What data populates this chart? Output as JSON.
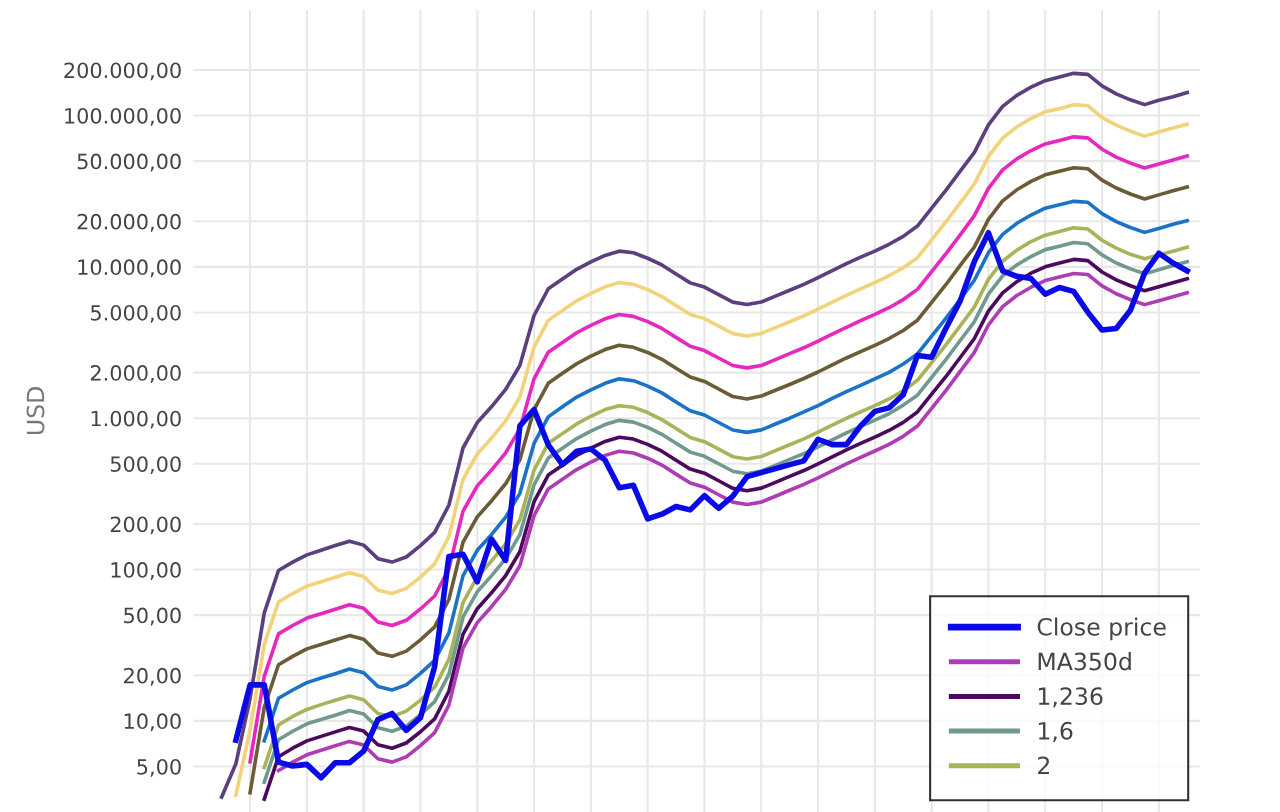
{
  "chart_data": {
    "type": "line",
    "ylabel": "USD",
    "log": "y",
    "ylim": [
      2.5,
      500000
    ],
    "yticks": [
      {
        "value": 5,
        "label": "5,00"
      },
      {
        "value": 10,
        "label": "10,00"
      },
      {
        "value": 20,
        "label": "20,00"
      },
      {
        "value": 50,
        "label": "50,00"
      },
      {
        "value": 100,
        "label": "100,00"
      },
      {
        "value": 200,
        "label": "200,00"
      },
      {
        "value": 500,
        "label": "500,00"
      },
      {
        "value": 1000,
        "label": "1.000,00"
      },
      {
        "value": 2000,
        "label": "2.000,00"
      },
      {
        "value": 5000,
        "label": "5.000,00"
      },
      {
        "value": 10000,
        "label": "10.000,00"
      },
      {
        "value": 20000,
        "label": "20.000,00"
      },
      {
        "value": 50000,
        "label": "50.000,00"
      },
      {
        "value": 100000,
        "label": "100.000,00"
      },
      {
        "value": 200000,
        "label": "200.000,00"
      }
    ],
    "tick_labels": "y",
    "grid": true,
    "legend": "bottom right",
    "marker": "none",
    "line_style": "solid",
    "categories": [
      null,
      null,
      null,
      null,
      null,
      null,
      null,
      null,
      null,
      null,
      null,
      null,
      null,
      null,
      null,
      null,
      null,
      null,
      null,
      null,
      null,
      null,
      null,
      null,
      null,
      null,
      null,
      null,
      null,
      null,
      null,
      null,
      null,
      null,
      null,
      null,
      null,
      null,
      null,
      null,
      null,
      null,
      null,
      null,
      null,
      null,
      null,
      null,
      null,
      null,
      null,
      null,
      null,
      null,
      null,
      null,
      null,
      null,
      null,
      null,
      null,
      null,
      null,
      null,
      null,
      null,
      null,
      null,
      null,
      null,
      null
    ],
    "series": [
      {
        "name": "Close price",
        "color": "#0a0ae6",
        "values": [
          null,
          null,
          null,
          7.45,
          17.3,
          17.3,
          5.34,
          5.03,
          5.16,
          4.21,
          5.29,
          5.29,
          6.31,
          10.2,
          11.2,
          8.66,
          10.5,
          22.9,
          122,
          126,
          83.0,
          159,
          115,
          890,
          1140,
          667,
          494,
          605,
          627,
          528,
          347,
          360,
          216,
          232,
          261,
          248,
          308,
          254,
          306,
          411,
          437,
          464,
          493,
          523,
          726,
          669,
          669,
          890,
          1110,
          1170,
          1430,
          2600,
          2530,
          3920,
          5920,
          10800,
          16800,
          9420,
          8660,
          8370,
          6600,
          7310,
          6880,
          5020,
          3830,
          3920,
          5170,
          9110,
          12300,
          10600,
          9410
        ]
      },
      {
        "name": "MA350d",
        "color": "#b03cb5",
        "values": [
          null,
          null,
          null,
          null,
          null,
          null,
          4.7,
          5.34,
          5.97,
          6.39,
          6.84,
          7.32,
          6.92,
          5.62,
          5.34,
          5.78,
          6.86,
          8.36,
          12.7,
          30.4,
          44.6,
          56.8,
          73.9,
          106,
          227,
          341,
          395,
          458,
          513,
          568,
          605,
          589,
          544,
          490,
          427,
          373,
          350,
          312,
          279,
          269,
          279,
          305,
          334,
          365,
          404,
          449,
          499,
          551,
          607,
          671,
          759,
          888,
          1160,
          1520,
          2030,
          2710,
          4130,
          5460,
          6470,
          7340,
          8120,
          8570,
          9040,
          8900,
          7480,
          6640,
          6070,
          5630,
          5980,
          6350,
          6750
        ]
      },
      {
        "name": "1,236",
        "color": "#4b0a5e",
        "values": [
          null,
          null,
          null,
          null,
          null,
          3.04,
          5.8,
          6.6,
          7.38,
          7.9,
          8.46,
          9.05,
          8.56,
          6.95,
          6.6,
          7.14,
          8.48,
          10.3,
          15.7,
          37.5,
          55.1,
          70.1,
          91.3,
          131,
          281,
          421,
          489,
          567,
          634,
          702,
          748,
          728,
          672,
          605,
          528,
          461,
          433,
          386,
          344,
          332,
          345,
          377,
          413,
          451,
          500,
          555,
          617,
          681,
          750,
          830,
          939,
          1100,
          1440,
          1880,
          2510,
          3350,
          5100,
          6740,
          7990,
          9080,
          10000,
          10600,
          11200,
          11000,
          9250,
          8200,
          7500,
          6950,
          7390,
          7850,
          8340
        ]
      },
      {
        "name": "1,6",
        "color": "#6f9a8d",
        "values": [
          null,
          null,
          null,
          null,
          null,
          3.94,
          7.51,
          8.54,
          9.56,
          10.2,
          10.9,
          11.7,
          11.1,
          9.0,
          8.55,
          9.24,
          11.0,
          13.4,
          20.3,
          48.6,
          71.3,
          90.8,
          118,
          170,
          363,
          545,
          633,
          734,
          821,
          908,
          968,
          942,
          870,
          783,
          684,
          597,
          560,
          500,
          446,
          430,
          447,
          488,
          534,
          584,
          647,
          719,
          799,
          882,
          970,
          1070,
          1220,
          1420,
          1860,
          2440,
          3250,
          4330,
          6600,
          8730,
          10300,
          11700,
          13000,
          13700,
          14500,
          14200,
          12000,
          10600,
          9700,
          9000,
          9560,
          10200,
          10800
        ]
      },
      {
        "name": "2",
        "color": "#a9b35a",
        "values": [
          null,
          null,
          null,
          null,
          null,
          4.92,
          9.39,
          10.7,
          11.9,
          12.8,
          13.7,
          14.6,
          13.8,
          11.2,
          10.7,
          11.6,
          13.7,
          16.7,
          25.4,
          60.7,
          89.2,
          114,
          148,
          213,
          454,
          682,
          791,
          917,
          1030,
          1140,
          1210,
          1180,
          1090,
          979,
          855,
          746,
          700,
          625,
          557,
          537,
          558,
          611,
          668,
          730,
          809,
          899,
          999,
          1100,
          1210,
          1340,
          1520,
          1780,
          2330,
          3050,
          4060,
          5420,
          8260,
          10900,
          12900,
          14700,
          16200,
          17100,
          18100,
          17800,
          15000,
          13300,
          12100,
          11300,
          12000,
          12700,
          13500
        ]
      },
      {
        "color": "#1a73c5",
        "values": [
          null,
          null,
          null,
          null,
          null,
          7.39,
          14.1,
          16.0,
          17.9,
          19.2,
          20.5,
          22.0,
          20.8,
          16.9,
          16.0,
          17.3,
          20.6,
          25.1,
          38.0,
          91.1,
          134,
          170,
          222,
          319,
          681,
          1020,
          1190,
          1380,
          1540,
          1700,
          1820,
          1770,
          1630,
          1470,
          1280,
          1120,
          1050,
          937,
          836,
          806,
          837,
          916,
          1000,
          1100,
          1210,
          1350,
          1500,
          1650,
          1820,
          2010,
          2280,
          2660,
          3490,
          4570,
          6090,
          8130,
          12400,
          16400,
          19400,
          22000,
          24400,
          25700,
          27100,
          26700,
          22500,
          19900,
          18200,
          16900,
          17900,
          19100,
          20200
        ]
      },
      {
        "color": "#6b5c35",
        "values": [
          null,
          null,
          null,
          null,
          3.35,
          12.3,
          23.5,
          26.7,
          29.9,
          32.0,
          34.2,
          36.6,
          34.6,
          28.1,
          26.7,
          28.9,
          34.3,
          41.8,
          63.4,
          152,
          223,
          284,
          369,
          531,
          1140,
          1700,
          1980,
          2290,
          2570,
          2840,
          3030,
          2940,
          2720,
          2450,
          2140,
          1870,
          1750,
          1560,
          1390,
          1340,
          1400,
          1530,
          1670,
          1830,
          2020,
          2250,
          2500,
          2750,
          3030,
          3360,
          3800,
          4440,
          5820,
          7620,
          10200,
          13500,
          20600,
          27300,
          32300,
          36700,
          40600,
          42800,
          45200,
          44500,
          37400,
          33200,
          30300,
          28100,
          29900,
          31800,
          33700
        ]
      },
      {
        "color": "#e528bf",
        "values": [
          null,
          null,
          null,
          null,
          5.36,
          19.7,
          37.6,
          42.7,
          47.8,
          51.1,
          54.7,
          58.6,
          55.4,
          45.0,
          42.7,
          46.2,
          54.9,
          66.9,
          101,
          243,
          357,
          454,
          591,
          850,
          1820,
          2730,
          3160,
          3670,
          4110,
          4540,
          4840,
          4710,
          4350,
          3920,
          3420,
          2990,
          2800,
          2500,
          2230,
          2150,
          2230,
          2440,
          2670,
          2920,
          3230,
          3590,
          3990,
          4410,
          4850,
          5370,
          6080,
          7100,
          9310,
          12200,
          16200,
          21700,
          33000,
          43700,
          51700,
          58700,
          64900,
          68500,
          72300,
          71200,
          59900,
          53100,
          48500,
          45000,
          47800,
          50800,
          54000
        ]
      },
      {
        "color": "#f2d27a",
        "values": [
          null,
          null,
          null,
          3.23,
          8.71,
          32.0,
          61.0,
          69.4,
          77.7,
          83.1,
          89.0,
          95.2,
          90.0,
          73.1,
          69.5,
          75.1,
          89.2,
          109,
          165,
          395,
          580,
          738,
          960,
          1380,
          2950,
          4430,
          5140,
          5960,
          6670,
          7380,
          7870,
          7660,
          7070,
          6360,
          5560,
          4850,
          4550,
          4060,
          3620,
          3490,
          3630,
          3970,
          4340,
          4750,
          5260,
          5840,
          6490,
          7160,
          7880,
          8730,
          9870,
          11500,
          15100,
          19800,
          26400,
          35200,
          53700,
          70900,
          84100,
          95500,
          106000,
          111000,
          118000,
          116000,
          97300,
          86300,
          78800,
          73100,
          77700,
          82600,
          87700
        ]
      },
      {
        "color": "#5b3f7e",
        "values": [
          null,
          null,
          3.14,
          5.21,
          14.1,
          51.7,
          98.6,
          112,
          125,
          134,
          144,
          154,
          145,
          118,
          112,
          121,
          144,
          176,
          266,
          638,
          936,
          1190,
          1550,
          2230,
          4770,
          7160,
          8300,
          9630,
          10800,
          11900,
          12700,
          12400,
          11400,
          10300,
          8980,
          7840,
          7350,
          6560,
          5850,
          5640,
          5860,
          6410,
          7010,
          7670,
          8490,
          9440,
          10500,
          11600,
          12700,
          14100,
          15900,
          18600,
          24400,
          32000,
          42700,
          56900,
          86700,
          115000,
          136000,
          154000,
          170000,
          180000,
          190000,
          187000,
          157000,
          139000,
          127000,
          118000,
          126000,
          133000,
          142000
        ]
      }
    ]
  }
}
